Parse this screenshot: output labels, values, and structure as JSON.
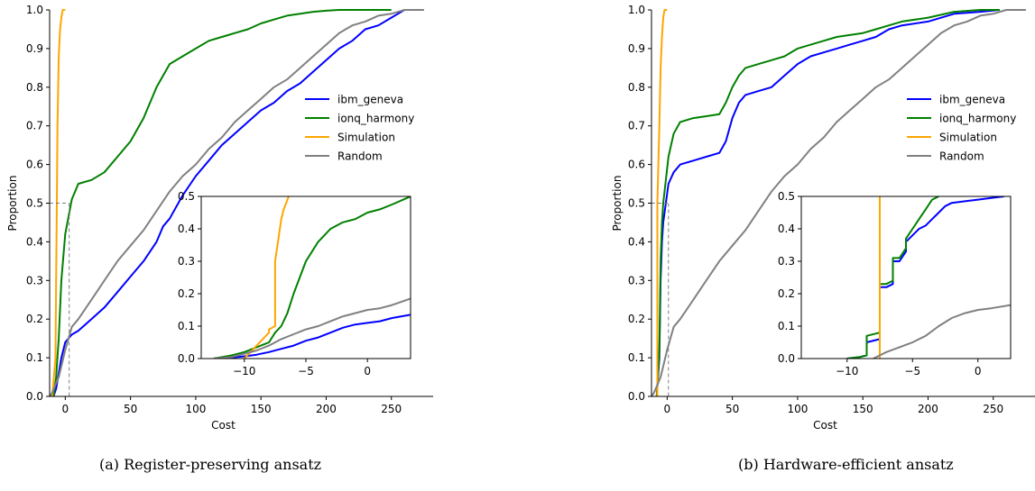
{
  "captions": {
    "a": "(a) Register-preserving ansatz",
    "b": "(b) Hardware-efficient ansatz"
  },
  "colors": {
    "ibm_geneva": "#0000ff",
    "ionq_harmony": "#008000",
    "Simulation": "#ffa500",
    "Random": "#808080"
  },
  "chart_data": [
    {
      "type": "line",
      "panel": "a",
      "xlabel": "Cost",
      "ylabel": "Proportion",
      "xlim": [
        -12,
        282
      ],
      "ylim": [
        0,
        1
      ],
      "xticks": [
        0,
        50,
        100,
        150,
        200,
        250
      ],
      "yticks": [
        0.0,
        0.1,
        0.2,
        0.3,
        0.4,
        0.5,
        0.6,
        0.7,
        0.8,
        0.9,
        1.0
      ],
      "legend_position": "right",
      "reference": {
        "x": 3,
        "y": 0.5
      },
      "series": [
        {
          "name": "ibm_geneva",
          "color": "#0000ff",
          "x": [
            -9,
            -7,
            -5,
            -3,
            0,
            5,
            10,
            20,
            30,
            40,
            50,
            60,
            70,
            75,
            80,
            90,
            100,
            110,
            120,
            130,
            140,
            150,
            160,
            170,
            180,
            190,
            200,
            210,
            220,
            230,
            240,
            250,
            255,
            260,
            270
          ],
          "y": [
            0.0,
            0.02,
            0.06,
            0.1,
            0.14,
            0.16,
            0.17,
            0.2,
            0.23,
            0.27,
            0.31,
            0.35,
            0.4,
            0.44,
            0.46,
            0.52,
            0.57,
            0.61,
            0.65,
            0.68,
            0.71,
            0.74,
            0.76,
            0.79,
            0.81,
            0.84,
            0.87,
            0.9,
            0.92,
            0.95,
            0.96,
            0.98,
            0.99,
            1.0,
            1.0
          ]
        },
        {
          "name": "ionq_harmony",
          "color": "#008000",
          "x": [
            -9,
            -7,
            -5,
            -3,
            0,
            5,
            10,
            20,
            30,
            40,
            50,
            60,
            70,
            80,
            90,
            100,
            110,
            120,
            130,
            140,
            150,
            160,
            170,
            180,
            190,
            200,
            210,
            220,
            230,
            240,
            250
          ],
          "y": [
            0.0,
            0.05,
            0.15,
            0.3,
            0.42,
            0.51,
            0.55,
            0.56,
            0.58,
            0.62,
            0.66,
            0.72,
            0.8,
            0.86,
            0.88,
            0.9,
            0.92,
            0.93,
            0.94,
            0.95,
            0.965,
            0.975,
            0.985,
            0.99,
            0.995,
            0.998,
            1.0,
            1.0,
            1.0,
            1.0,
            1.0
          ]
        },
        {
          "name": "Simulation",
          "color": "#ffa500",
          "x": [
            -10,
            -8,
            -7.5,
            -7,
            -6.5,
            -6,
            -5,
            -4,
            -3,
            -2,
            0
          ],
          "y": [
            0.0,
            0.08,
            0.1,
            0.3,
            0.5,
            0.7,
            0.88,
            0.95,
            0.98,
            1.0,
            1.0
          ]
        },
        {
          "name": "Random",
          "color": "#808080",
          "x": [
            -12,
            -10,
            -5,
            0,
            5,
            10,
            20,
            30,
            40,
            50,
            60,
            70,
            80,
            90,
            100,
            110,
            120,
            130,
            140,
            150,
            160,
            170,
            180,
            190,
            200,
            210,
            220,
            230,
            240,
            250,
            260,
            270,
            275
          ],
          "y": [
            0.0,
            0.01,
            0.05,
            0.12,
            0.18,
            0.2,
            0.25,
            0.3,
            0.35,
            0.39,
            0.43,
            0.48,
            0.53,
            0.57,
            0.6,
            0.64,
            0.67,
            0.71,
            0.74,
            0.77,
            0.8,
            0.82,
            0.85,
            0.88,
            0.91,
            0.94,
            0.96,
            0.97,
            0.985,
            0.99,
            1.0,
            1.0,
            1.0
          ]
        }
      ],
      "legend": [
        "ibm_geneva",
        "ionq_harmony",
        "Simulation",
        "Random"
      ],
      "inset": {
        "xlim": [
          -13.5,
          3.5
        ],
        "ylim": [
          0,
          0.5
        ],
        "xticks": [
          -10,
          -5,
          0
        ],
        "xtick_labels": [
          "−10",
          "−5",
          "0"
        ],
        "yticks": [
          0.0,
          0.1,
          0.2,
          0.3,
          0.4,
          0.5
        ],
        "series": [
          {
            "name": "ibm_geneva",
            "color": "#0000ff",
            "x": [
              -12.5,
              -11,
              -10,
              -9,
              -8,
              -7,
              -6,
              -5,
              -4,
              -3,
              -2,
              -1,
              0,
              1,
              2,
              3.5
            ],
            "y": [
              0.0,
              0.003,
              0.007,
              0.012,
              0.02,
              0.03,
              0.04,
              0.055,
              0.065,
              0.08,
              0.095,
              0.105,
              0.11,
              0.115,
              0.125,
              0.135
            ]
          },
          {
            "name": "ionq_harmony",
            "color": "#008000",
            "x": [
              -12.5,
              -11,
              -10,
              -9,
              -8,
              -7.5,
              -7,
              -6.5,
              -6,
              -5.5,
              -5,
              -4.5,
              -4,
              -3.5,
              -3,
              -2.5,
              -2,
              -1.5,
              -1,
              -0.5,
              0,
              1,
              2,
              3.5
            ],
            "y": [
              0.0,
              0.01,
              0.02,
              0.035,
              0.05,
              0.08,
              0.1,
              0.14,
              0.2,
              0.25,
              0.3,
              0.33,
              0.36,
              0.38,
              0.4,
              0.41,
              0.42,
              0.425,
              0.43,
              0.44,
              0.45,
              0.46,
              0.475,
              0.5
            ]
          },
          {
            "name": "Simulation",
            "color": "#ffa500",
            "x": [
              -10,
              -9,
              -8,
              -8,
              -7.5,
              -7.5,
              -7,
              -6.8,
              -6.6,
              -6.4
            ],
            "y": [
              0.0,
              0.04,
              0.08,
              0.09,
              0.1,
              0.3,
              0.43,
              0.46,
              0.48,
              0.5
            ]
          },
          {
            "name": "Random",
            "color": "#808080",
            "x": [
              -12.5,
              -11,
              -10,
              -9,
              -8,
              -7,
              -6,
              -5,
              -4,
              -3,
              -2,
              -1,
              0,
              1,
              2,
              3.5
            ],
            "y": [
              0.0,
              0.005,
              0.015,
              0.025,
              0.04,
              0.06,
              0.075,
              0.09,
              0.1,
              0.115,
              0.13,
              0.14,
              0.15,
              0.155,
              0.165,
              0.185
            ]
          }
        ]
      }
    },
    {
      "type": "line",
      "panel": "b",
      "xlabel": "Cost",
      "ylabel": "Proportion",
      "xlim": [
        -12,
        282
      ],
      "ylim": [
        0,
        1
      ],
      "xticks": [
        0,
        50,
        100,
        150,
        200,
        250
      ],
      "yticks": [
        0.0,
        0.1,
        0.2,
        0.3,
        0.4,
        0.5,
        0.6,
        0.7,
        0.8,
        0.9,
        1.0
      ],
      "legend_position": "right",
      "reference": {
        "x": 1,
        "y": 0.5
      },
      "series": [
        {
          "name": "ibm_geneva",
          "color": "#0000ff",
          "x": [
            -8,
            -6,
            -5,
            -4,
            -3,
            -1,
            1,
            5,
            10,
            20,
            30,
            40,
            45,
            50,
            55,
            60,
            70,
            80,
            90,
            100,
            110,
            120,
            130,
            140,
            150,
            160,
            170,
            180,
            200,
            220,
            240,
            255
          ],
          "y": [
            0.0,
            0.1,
            0.3,
            0.4,
            0.45,
            0.5,
            0.55,
            0.58,
            0.6,
            0.61,
            0.62,
            0.63,
            0.66,
            0.72,
            0.76,
            0.78,
            0.79,
            0.8,
            0.83,
            0.86,
            0.88,
            0.89,
            0.9,
            0.91,
            0.92,
            0.93,
            0.95,
            0.96,
            0.97,
            0.99,
            0.995,
            1.0
          ]
        },
        {
          "name": "ionq_harmony",
          "color": "#008000",
          "x": [
            -8,
            -6,
            -5,
            -4,
            -3,
            -1,
            1,
            5,
            10,
            20,
            30,
            40,
            45,
            50,
            55,
            60,
            70,
            80,
            90,
            100,
            110,
            120,
            130,
            140,
            150,
            160,
            170,
            180,
            200,
            220,
            240,
            255
          ],
          "y": [
            0.0,
            0.12,
            0.35,
            0.45,
            0.5,
            0.56,
            0.62,
            0.68,
            0.71,
            0.72,
            0.725,
            0.73,
            0.76,
            0.8,
            0.83,
            0.85,
            0.86,
            0.87,
            0.88,
            0.9,
            0.91,
            0.92,
            0.93,
            0.935,
            0.94,
            0.95,
            0.96,
            0.97,
            0.98,
            0.995,
            1.0,
            1.0
          ]
        },
        {
          "name": "Simulation",
          "color": "#ffa500",
          "x": [
            -7.5,
            -7.5,
            -6,
            -5,
            -4,
            -3,
            -2,
            0
          ],
          "y": [
            0.0,
            0.5,
            0.7,
            0.85,
            0.93,
            0.98,
            1.0,
            1.0
          ]
        },
        {
          "name": "Random",
          "color": "#808080",
          "x": [
            -12,
            -10,
            -5,
            0,
            5,
            10,
            20,
            30,
            40,
            50,
            60,
            70,
            80,
            90,
            100,
            110,
            120,
            130,
            140,
            150,
            160,
            170,
            180,
            190,
            200,
            210,
            220,
            230,
            240,
            250,
            260,
            270,
            275
          ],
          "y": [
            0.0,
            0.01,
            0.05,
            0.12,
            0.18,
            0.2,
            0.25,
            0.3,
            0.35,
            0.39,
            0.43,
            0.48,
            0.53,
            0.57,
            0.6,
            0.64,
            0.67,
            0.71,
            0.74,
            0.77,
            0.8,
            0.82,
            0.85,
            0.88,
            0.91,
            0.94,
            0.96,
            0.97,
            0.985,
            0.99,
            1.0,
            1.0,
            1.0
          ]
        }
      ],
      "legend": [
        "ibm_geneva",
        "ionq_harmony",
        "Simulation",
        "Random"
      ],
      "inset": {
        "xlim": [
          -13.5,
          2.5
        ],
        "ylim": [
          0,
          0.5
        ],
        "xticks": [
          -10,
          -5,
          0
        ],
        "xtick_labels": [
          "−10",
          "−5",
          "0"
        ],
        "yticks": [
          0.0,
          0.1,
          0.2,
          0.3,
          0.4,
          0.5
        ],
        "series": [
          {
            "name": "ibm_geneva",
            "color": "#0000ff",
            "x": [
              -10,
              -9,
              -8.5,
              -8.5,
              -7.5,
              -7.5,
              -7,
              -6.5,
              -6.5,
              -6,
              -5.5,
              -5.5,
              -5,
              -4.5,
              -4,
              -3.5,
              -3,
              -2.5,
              -2,
              -1,
              0,
              1,
              2
            ],
            "y": [
              0.0,
              0.005,
              0.01,
              0.05,
              0.06,
              0.22,
              0.22,
              0.23,
              0.3,
              0.3,
              0.33,
              0.36,
              0.38,
              0.4,
              0.41,
              0.43,
              0.45,
              0.47,
              0.48,
              0.485,
              0.49,
              0.495,
              0.5
            ]
          },
          {
            "name": "ionq_harmony",
            "color": "#008000",
            "x": [
              -10,
              -9,
              -8.5,
              -8.5,
              -7.5,
              -7.5,
              -7,
              -6.5,
              -6.5,
              -6,
              -5.5,
              -5.5,
              -5,
              -4.5,
              -4,
              -3.5,
              -3
            ],
            "y": [
              0.0,
              0.005,
              0.01,
              0.07,
              0.08,
              0.23,
              0.23,
              0.24,
              0.31,
              0.31,
              0.34,
              0.37,
              0.4,
              0.43,
              0.46,
              0.49,
              0.5
            ]
          },
          {
            "name": "Simulation",
            "color": "#ffa500",
            "x": [
              -7.5,
              -7.5
            ],
            "y": [
              0.0,
              0.5
            ]
          },
          {
            "name": "Random",
            "color": "#808080",
            "x": [
              -8,
              -7,
              -6,
              -5,
              -4,
              -3,
              -2,
              -1,
              0,
              1,
              2.5
            ],
            "y": [
              0.0,
              0.02,
              0.035,
              0.05,
              0.07,
              0.1,
              0.125,
              0.14,
              0.15,
              0.155,
              0.165
            ]
          }
        ]
      }
    }
  ]
}
